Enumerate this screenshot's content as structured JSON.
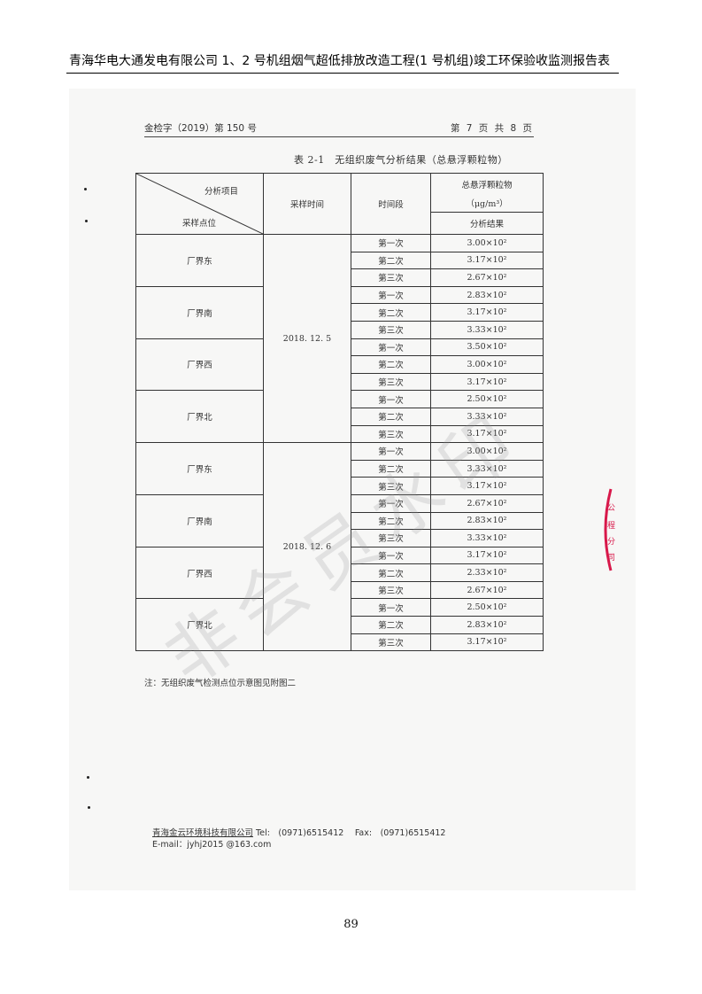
{
  "header": {
    "title": "青海华电大通发电有限公司 1、2 号机组烟气超低排放改造工程(1 号机组)竣工环保验收监测报告表"
  },
  "scan": {
    "doc_no": "金检字（2019）第 150 号",
    "page_info": "第 7 页 共 8 页",
    "table_title": "表 2-1　无组织废气分析结果（总悬浮颗粒物）",
    "columns": {
      "item": "分析项目",
      "point": "采样点位",
      "time": "采样时间",
      "period": "时间段",
      "pollutant": "总悬浮颗粒物",
      "unit": "（μg/m³）",
      "result": "分析结果"
    },
    "groups": [
      {
        "date": "2018. 12. 5",
        "locations": [
          {
            "name": "厂界东",
            "rows": [
              [
                "第一次",
                "3.00×10²"
              ],
              [
                "第二次",
                "3.17×10²"
              ],
              [
                "第三次",
                "2.67×10²"
              ]
            ]
          },
          {
            "name": "厂界南",
            "rows": [
              [
                "第一次",
                "2.83×10²"
              ],
              [
                "第二次",
                "3.17×10²"
              ],
              [
                "第三次",
                "3.33×10²"
              ]
            ]
          },
          {
            "name": "厂界西",
            "rows": [
              [
                "第一次",
                "3.50×10²"
              ],
              [
                "第二次",
                "3.00×10²"
              ],
              [
                "第三次",
                "3.17×10²"
              ]
            ]
          },
          {
            "name": "厂界北",
            "rows": [
              [
                "第一次",
                "2.50×10²"
              ],
              [
                "第二次",
                "3.33×10²"
              ],
              [
                "第三次",
                "3.17×10²"
              ]
            ]
          }
        ]
      },
      {
        "date": "2018. 12. 6",
        "locations": [
          {
            "name": "厂界东",
            "rows": [
              [
                "第一次",
                "3.00×10²"
              ],
              [
                "第二次",
                "3.33×10²"
              ],
              [
                "第三次",
                "3.17×10²"
              ]
            ]
          },
          {
            "name": "厂界南",
            "rows": [
              [
                "第一次",
                "2.67×10²"
              ],
              [
                "第二次",
                "2.83×10²"
              ],
              [
                "第三次",
                "3.33×10²"
              ]
            ]
          },
          {
            "name": "厂界西",
            "rows": [
              [
                "第一次",
                "3.17×10²"
              ],
              [
                "第二次",
                "2.33×10²"
              ],
              [
                "第三次",
                "2.67×10²"
              ]
            ]
          },
          {
            "name": "厂界北",
            "rows": [
              [
                "第一次",
                "2.50×10²"
              ],
              [
                "第二次",
                "2.83×10²"
              ],
              [
                "第三次",
                "3.17×10²"
              ]
            ]
          }
        ]
      }
    ],
    "note": "注：无组织废气检测点位示意图见附图二",
    "footer": {
      "company": "青海金云环境科技有限公司",
      "contact": " Tel:　(0971)6515412　 Fax:　(0971)6515412",
      "email": "E-mail：jyhj2015 @163.com"
    },
    "watermark": "非会员水印",
    "stamp_color": "#d8184a"
  },
  "page_number": "89"
}
